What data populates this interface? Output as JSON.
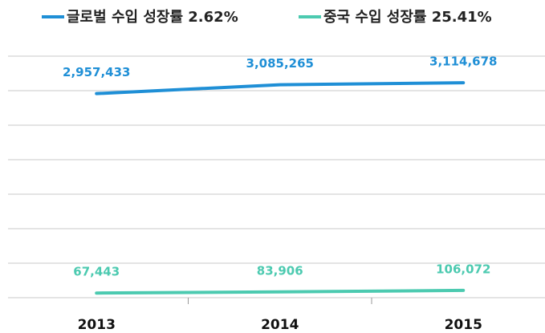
{
  "chart_data": {
    "type": "line",
    "categories": [
      "2013",
      "2014",
      "2015"
    ],
    "series": [
      {
        "name": "글로벌 수입 성장률 2.62%",
        "color": "#1f8fd6",
        "values": [
          2957433,
          3085265,
          3114678
        ],
        "value_labels": [
          "2,957,433",
          "3,085,265",
          "3,114,678"
        ]
      },
      {
        "name": "중국 수입 성장률 25.41%",
        "color": "#4ccab0",
        "values": [
          67443,
          83906,
          106072
        ],
        "value_labels": [
          "67,443",
          "83,906",
          "106,072"
        ]
      }
    ],
    "ylim": [
      0,
      3500000
    ],
    "yticks": [
      0,
      500000,
      1000000,
      1500000,
      2000000,
      2500000,
      3000000,
      3500000
    ],
    "grid": true
  }
}
